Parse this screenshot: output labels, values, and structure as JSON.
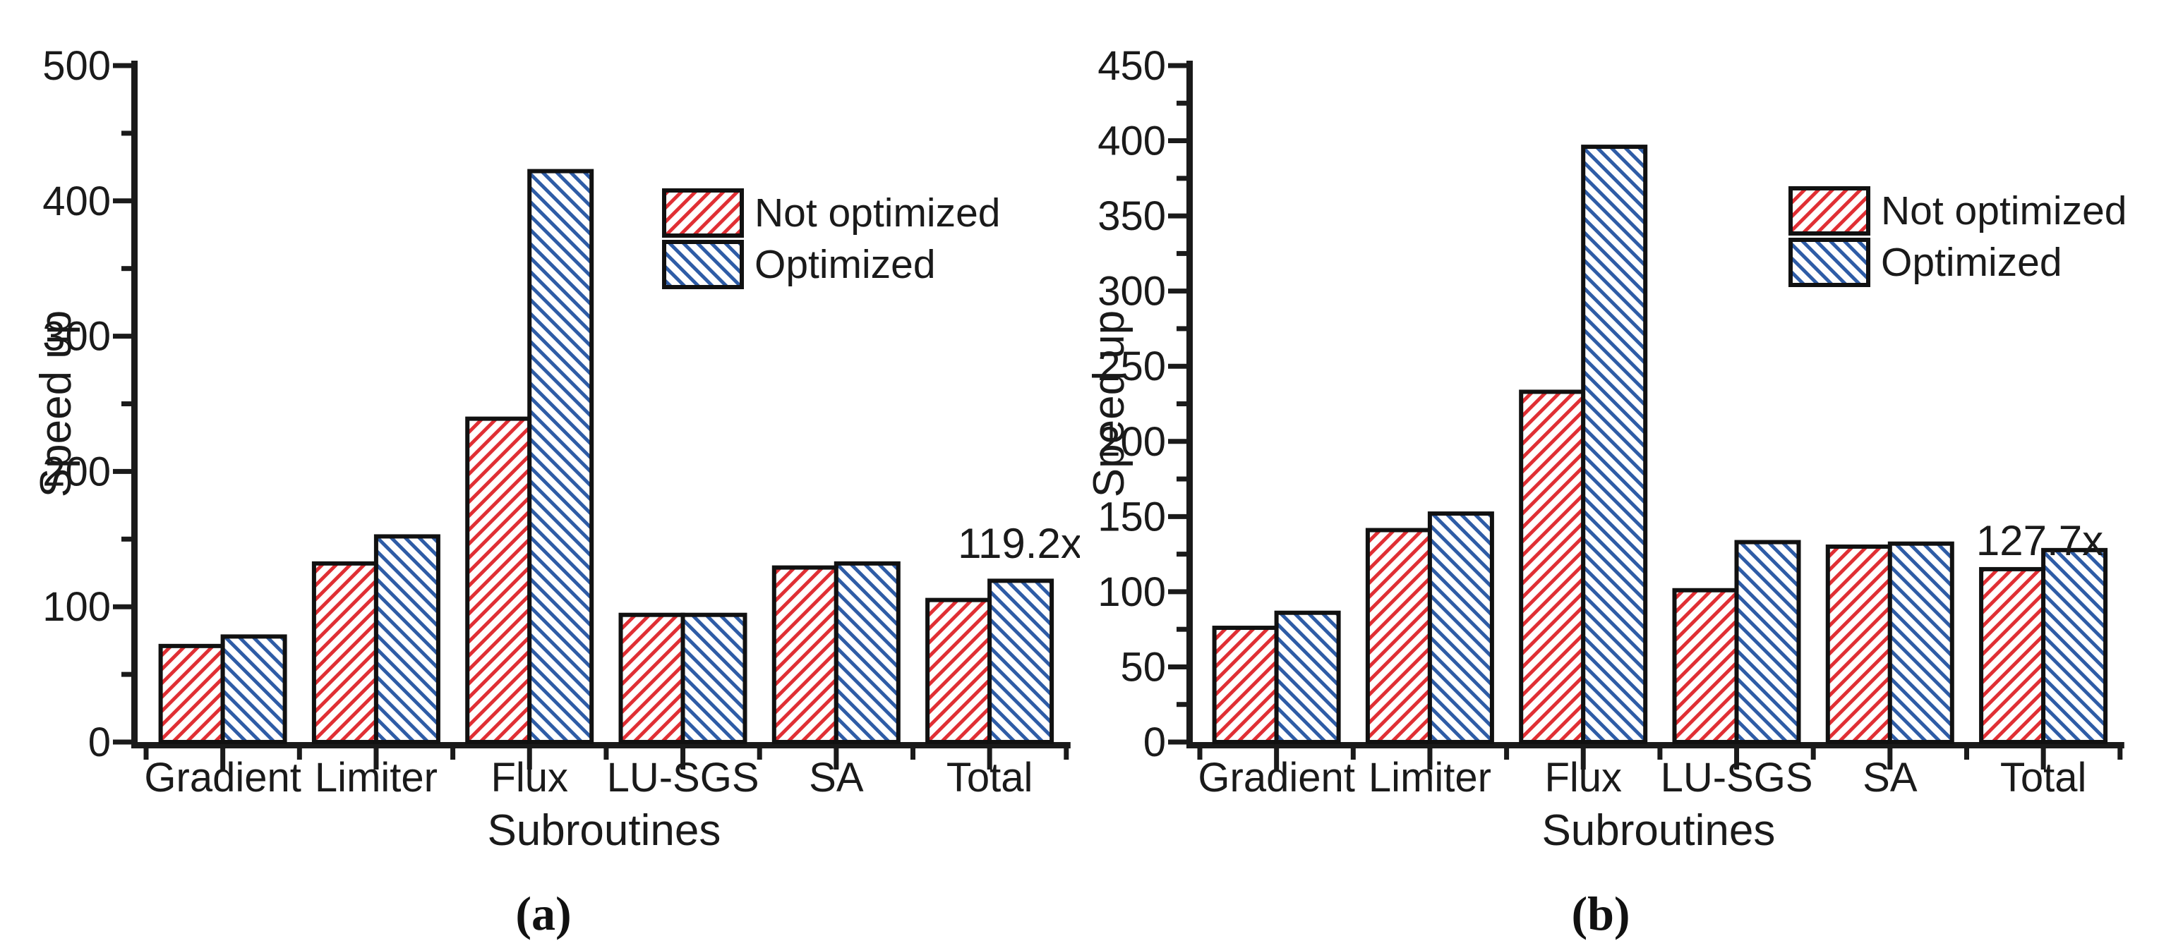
{
  "chart_data": [
    {
      "type": "bar",
      "panel_label": "(a)",
      "title": "",
      "xlabel": "Subroutines",
      "ylabel": "Speed up",
      "categories": [
        "Gradient",
        "Limiter",
        "Flux",
        "LU-SGS",
        "SA",
        "Total"
      ],
      "series": [
        {
          "name": "Not optimized",
          "color": "#e02f34",
          "hatch": "/",
          "values": [
            71,
            132,
            239,
            94,
            129,
            105
          ]
        },
        {
          "name": "Optimized",
          "color": "#2e5ca6",
          "hatch": "\\",
          "values": [
            78,
            152,
            422,
            94,
            132,
            119.2
          ]
        }
      ],
      "ylim": [
        0,
        500
      ],
      "ytick_step": 100,
      "ytick_minor_step": 50,
      "annotation": {
        "text": "119.2x",
        "above_category": "Total"
      },
      "legend_position": "upper right inside",
      "grid": false,
      "axis_color": "#1a1a1a"
    },
    {
      "type": "bar",
      "panel_label": "(b)",
      "title": "",
      "xlabel": "Subroutines",
      "ylabel": "Speed up",
      "categories": [
        "Gradient",
        "Limiter",
        "Flux",
        "LU-SGS",
        "SA",
        "Total"
      ],
      "series": [
        {
          "name": "Not optimized",
          "color": "#e02f34",
          "hatch": "/",
          "values": [
            76,
            141,
            233,
            101,
            130,
            115
          ]
        },
        {
          "name": "Optimized",
          "color": "#2e5ca6",
          "hatch": "\\",
          "values": [
            86,
            152,
            396,
            133,
            132,
            127.7
          ]
        }
      ],
      "ylim": [
        0,
        450
      ],
      "ytick_step": 50,
      "ytick_minor_step": 25,
      "annotation": {
        "text": "127.7x",
        "above_category": "Total"
      },
      "legend_position": "upper right inside",
      "grid": false,
      "axis_color": "#1a1a1a"
    }
  ]
}
